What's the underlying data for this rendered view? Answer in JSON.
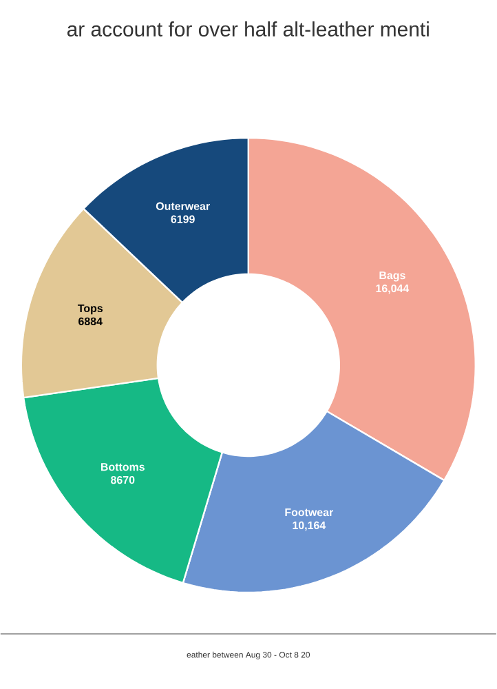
{
  "chart_data": {
    "type": "donut",
    "title": "ar account for over half alt-leather menti",
    "categories": [
      "Bags",
      "Footwear",
      "Bottoms",
      "Tops",
      "Outerwear"
    ],
    "values": [
      16044,
      10164,
      8670,
      6884,
      6199
    ],
    "value_labels": [
      "16,044",
      "10,164",
      "8670",
      "6884",
      "6199"
    ],
    "colors": [
      "#f4a595",
      "#6b94d2",
      "#16b985",
      "#e2c895",
      "#16497c"
    ],
    "annotations": [
      "eather between Aug 30 - Oct 8 20"
    ]
  }
}
